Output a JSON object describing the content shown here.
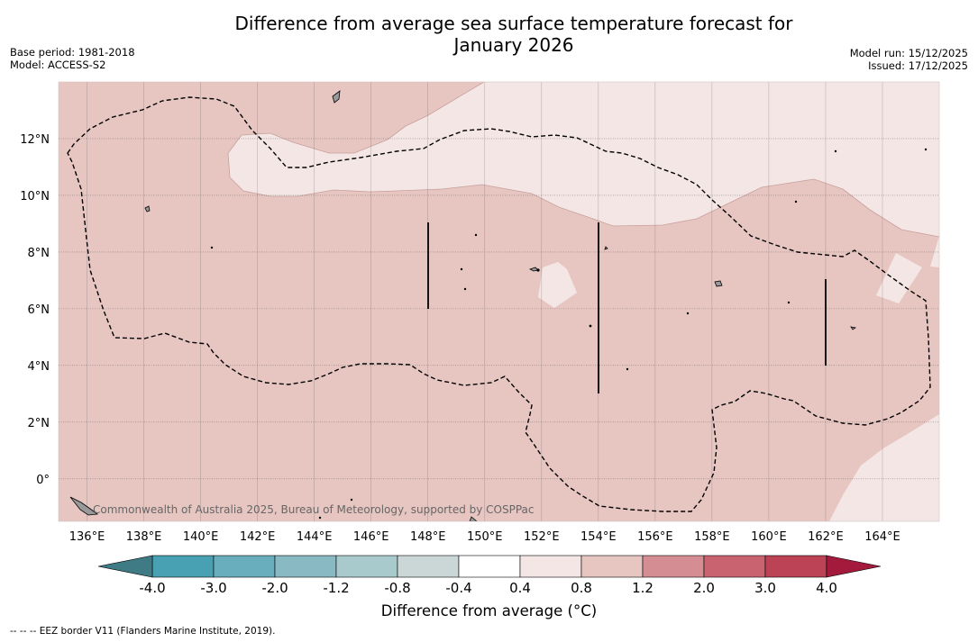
{
  "title_line1": "Difference from average sea surface temperature forecast for",
  "title_line2": "January 2026",
  "meta_left": [
    "Base period: 1981-2018",
    "Model: ACCESS-S2"
  ],
  "meta_right": [
    "Model run: 15/12/2025",
    "Issued: 17/12/2025"
  ],
  "map": {
    "lon_labels": [
      "136°E",
      "138°E",
      "140°E",
      "142°E",
      "144°E",
      "146°E",
      "148°E",
      "150°E",
      "152°E",
      "154°E",
      "156°E",
      "158°E",
      "160°E",
      "162°E",
      "164°E"
    ],
    "lat_labels": [
      "12°N",
      "10°N",
      "8°N",
      "6°N",
      "4°N",
      "2°N",
      "0°"
    ],
    "lon_range": [
      135,
      166
    ],
    "lat_range": [
      -1.5,
      14
    ],
    "watermark": "Commonwealth of Australia 2025, Bureau of Meteorology, supported by COSPPac",
    "colors": {
      "band_04_08": "#f4e6e4",
      "band_08_12": "#e7c6c2",
      "land": "#999999"
    }
  },
  "colorbar": {
    "labels": [
      "-4.0",
      "-3.0",
      "-2.0",
      "-1.2",
      "-0.8",
      "-0.4",
      "0.4",
      "0.8",
      "1.2",
      "2.0",
      "3.0",
      "4.0"
    ],
    "colors": [
      "#48a1b2",
      "#69aebc",
      "#89bac4",
      "#a9cacc",
      "#cbd6d6",
      "#ffffff",
      "#f4e6e4",
      "#e7c6c2",
      "#d48d93",
      "#c96370",
      "#bc4255"
    ],
    "low_extend": "#3f7b84",
    "high_extend": "#a41a3d",
    "title": "Difference from average (°C)"
  },
  "footnote": "--  --  -- EEZ border V11 (Flanders Marine Institute, 2019)."
}
